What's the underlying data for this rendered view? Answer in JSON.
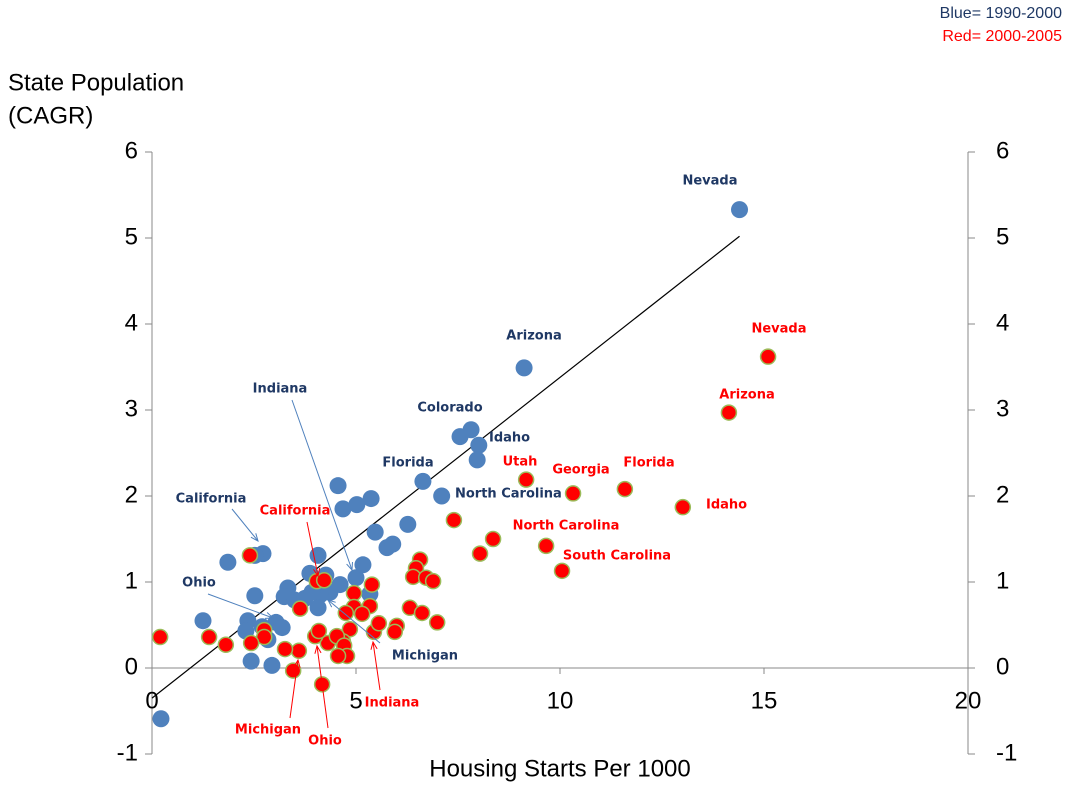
{
  "chart_data": {
    "type": "scatter",
    "ylabel": [
      "State Population",
      "(CAGR)"
    ],
    "xlabel": "Housing Starts Per 1000",
    "xlim": [
      0,
      20
    ],
    "xticks": [
      0,
      5,
      10,
      15,
      20
    ],
    "ylim": [
      -1,
      6
    ],
    "yticks": [
      -1,
      0,
      1,
      2,
      3,
      4,
      5,
      6
    ],
    "y2lim": [
      -1,
      6
    ],
    "y2ticks": [
      -1,
      0,
      1,
      2,
      3,
      4,
      5,
      6
    ],
    "trendline": {
      "x": [
        0,
        14.4
      ],
      "y": [
        -0.35,
        5.02
      ],
      "color": "#000000"
    },
    "series": [
      {
        "name": "Blue= 1990-2000",
        "color": "#4f81bd",
        "label_color": "#1f3864",
        "x": [
          14.4,
          9.12,
          7.82,
          8.01,
          6.64,
          7.1,
          2.72,
          5.0,
          3.04,
          4.36,
          7.55,
          7.97,
          4.56,
          5.37,
          4.68,
          5.02,
          6.27,
          5.47,
          5.76,
          5.9,
          5.17,
          2.52,
          1.86,
          4.07,
          3.87,
          4.26,
          4.61,
          4.12,
          3.33,
          3.24,
          3.5,
          3.75,
          3.92,
          4.07,
          2.52,
          5.34,
          1.25,
          2.35,
          2.3,
          3.19,
          2.84,
          2.7,
          2.43,
          2.94,
          0.22
        ],
        "values": [
          5.33,
          3.49,
          2.77,
          2.59,
          2.17,
          2.0,
          1.33,
          1.05,
          0.53,
          0.88,
          2.69,
          2.42,
          2.12,
          1.97,
          1.85,
          1.9,
          1.67,
          1.58,
          1.4,
          1.44,
          1.2,
          1.31,
          1.23,
          1.31,
          1.1,
          1.08,
          0.97,
          0.85,
          0.93,
          0.83,
          0.79,
          0.81,
          0.88,
          0.7,
          0.84,
          0.86,
          0.55,
          0.55,
          0.43,
          0.47,
          0.33,
          0.48,
          0.08,
          0.03,
          -0.59
        ],
        "labels": [
          "Nevada",
          "Arizona",
          "Colorado",
          "Idaho",
          "Florida",
          "North Carolina",
          "California",
          "Indiana",
          "Ohio",
          "Michigan",
          null,
          null,
          null,
          null,
          null,
          null,
          null,
          null,
          null,
          null,
          null,
          null,
          null,
          null,
          null,
          null,
          null,
          null,
          null,
          null,
          null,
          null,
          null,
          null,
          null,
          null,
          null,
          null,
          null,
          null,
          null,
          null,
          null,
          null,
          null
        ]
      },
      {
        "name": "Red= 2000-2005",
        "color": "#ff0000",
        "stroke": "#9bbb59",
        "label_color": "#ff0000",
        "x": [
          15.1,
          14.14,
          11.59,
          13.01,
          10.32,
          9.17,
          8.36,
          10.05,
          4.04,
          5.44,
          3.6,
          4.31,
          8.04,
          9.66,
          7.4,
          6.57,
          6.47,
          6.4,
          6.72,
          6.89,
          6.32,
          6.62,
          6.99,
          6.0,
          5.95,
          5.56,
          5.39,
          4.95,
          5.34,
          4.95,
          5.15,
          4.75,
          4.85,
          4.68,
          4.53,
          4.71,
          4.78,
          4.56,
          4.0,
          4.09,
          3.63,
          4.22,
          2.4,
          2.75,
          2.75,
          2.43,
          1.81,
          1.4,
          0.2,
          3.26,
          3.46,
          4.17
        ],
        "values": [
          3.62,
          2.97,
          2.08,
          1.87,
          2.03,
          2.19,
          1.5,
          1.13,
          1.01,
          0.42,
          0.2,
          0.29,
          1.33,
          1.42,
          1.72,
          1.26,
          1.16,
          1.06,
          1.05,
          1.01,
          0.7,
          0.64,
          0.53,
          0.49,
          0.42,
          0.52,
          0.97,
          0.87,
          0.72,
          0.71,
          0.63,
          0.64,
          0.45,
          0.31,
          0.37,
          0.26,
          0.14,
          0.14,
          0.37,
          0.43,
          0.69,
          1.02,
          1.31,
          0.44,
          0.36,
          0.29,
          0.27,
          0.36,
          0.36,
          0.22,
          -0.03,
          -0.19
        ],
        "labels": [
          "Nevada",
          "Arizona",
          "Florida",
          "Idaho",
          "Georgia",
          "Utah",
          "North Carolina",
          "South Carolina",
          "California",
          "Indiana",
          "Michigan",
          "Ohio",
          null,
          null,
          null,
          null,
          null,
          null,
          null,
          null,
          null,
          null,
          null,
          null,
          null,
          null,
          null,
          null,
          null,
          null,
          null,
          null,
          null,
          null,
          null,
          null,
          null,
          null,
          null,
          null,
          null,
          null,
          null,
          null,
          null,
          null,
          null,
          null,
          null,
          null,
          null,
          null
        ]
      }
    ]
  }
}
